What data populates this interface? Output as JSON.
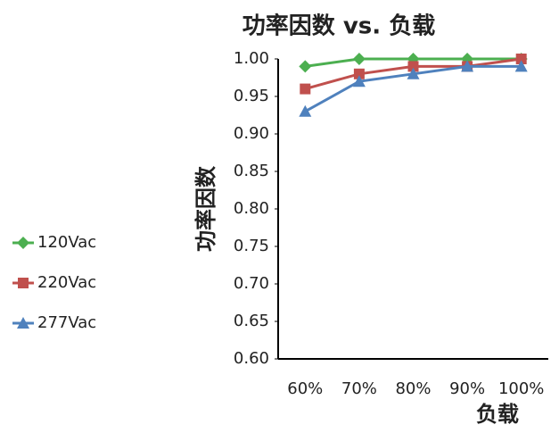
{
  "chart_data": {
    "type": "line",
    "title": "功率因数 vs. 负载",
    "x_label": "负载",
    "y_label": "功率因数",
    "categories": [
      "60%",
      "70%",
      "80%",
      "90%",
      "100%"
    ],
    "series": [
      {
        "name": "120Vac",
        "color": "#4caf50",
        "marker": "diamond",
        "values": [
          0.99,
          1.0,
          1.0,
          1.0,
          1.0
        ]
      },
      {
        "name": "220Vac",
        "color": "#c0504d",
        "marker": "square",
        "values": [
          0.96,
          0.98,
          0.99,
          0.99,
          1.0
        ]
      },
      {
        "name": "277Vac",
        "color": "#4f81bd",
        "marker": "triangle",
        "values": [
          0.93,
          0.97,
          0.98,
          0.99,
          0.99
        ]
      }
    ],
    "ylim": [
      0.6,
      1.0
    ],
    "yticks": [
      {
        "value": 0.6,
        "label": "0.60"
      },
      {
        "value": 0.65,
        "label": "0.65"
      },
      {
        "value": 0.7,
        "label": "0.70"
      },
      {
        "value": 0.75,
        "label": "0.75"
      },
      {
        "value": 0.8,
        "label": "0.80"
      },
      {
        "value": 0.85,
        "label": "0.85"
      },
      {
        "value": 0.9,
        "label": "0.90"
      },
      {
        "value": 0.95,
        "label": "0.95"
      },
      {
        "value": 1.0,
        "label": "1.00"
      }
    ],
    "grid": false
  }
}
